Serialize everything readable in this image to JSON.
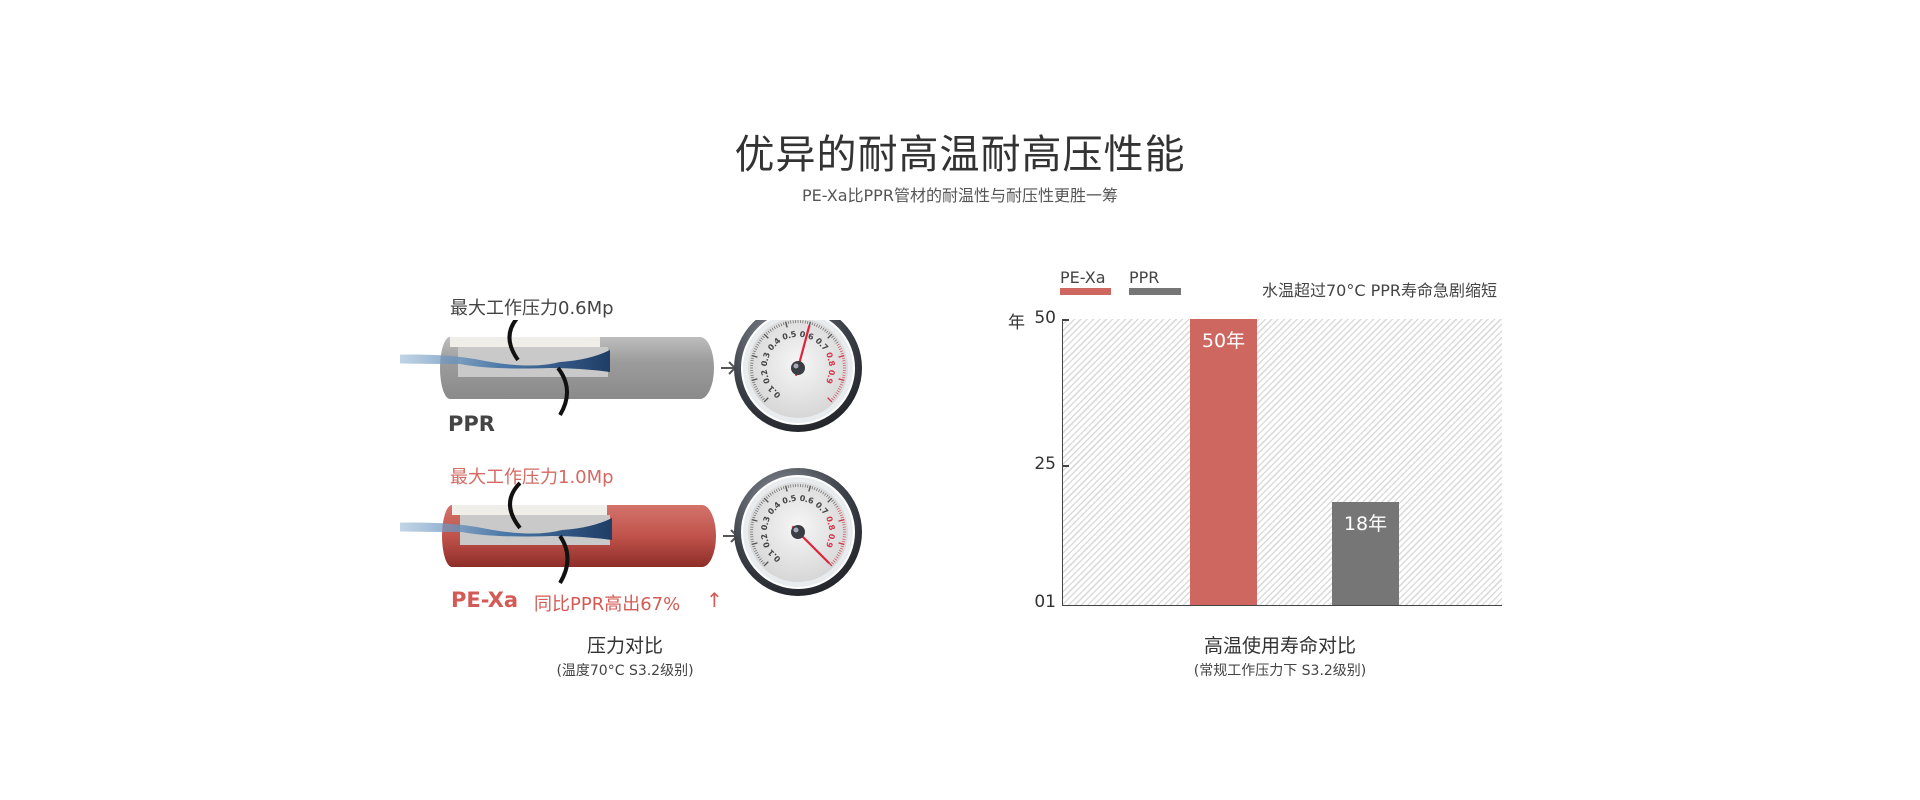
{
  "header": {
    "title": "优异的耐高温耐高压性能",
    "subtitle": "PE-Xa比PPR管材的耐温性与耐压性更胜一筹"
  },
  "pressure": {
    "ppr": {
      "pressure_label": "最大工作压力0.6Mp",
      "name": "PPR",
      "gauge_value": 0.6
    },
    "pexa": {
      "pressure_label": "最大工作压力1.0Mp",
      "name": "PE-Xa",
      "compare": "同比PPR高出67%",
      "arrow": "↑",
      "gauge_value": 1.0
    },
    "gauge_ticks": [
      "0.1",
      "0.2",
      "0.3",
      "0.4",
      "0.5",
      "0.6",
      "0.7",
      "0.8",
      "0.9"
    ],
    "caption": "压力对比",
    "caption_sub": "(温度70°C   S3.2级别)"
  },
  "chart_data": {
    "type": "bar",
    "categories": [
      "PE-Xa",
      "PPR"
    ],
    "values": [
      50,
      18
    ],
    "data_labels": [
      "50年",
      "18年"
    ],
    "colors": {
      "PE-Xa": "#cd6760",
      "PPR": "#777677"
    },
    "legend": [
      "PE-Xa",
      "PPR"
    ],
    "legend_placement": "top-left",
    "annotation": "水温超过70°C PPR寿命急剧缩短",
    "ylabel": "年",
    "yticks": [
      "50",
      "25",
      "01"
    ],
    "ylim": [
      0,
      50
    ],
    "grid": false,
    "background": "hatched",
    "caption": "高温使用寿命对比",
    "caption_sub": "(常规工作压力下   S3.2级别)"
  }
}
